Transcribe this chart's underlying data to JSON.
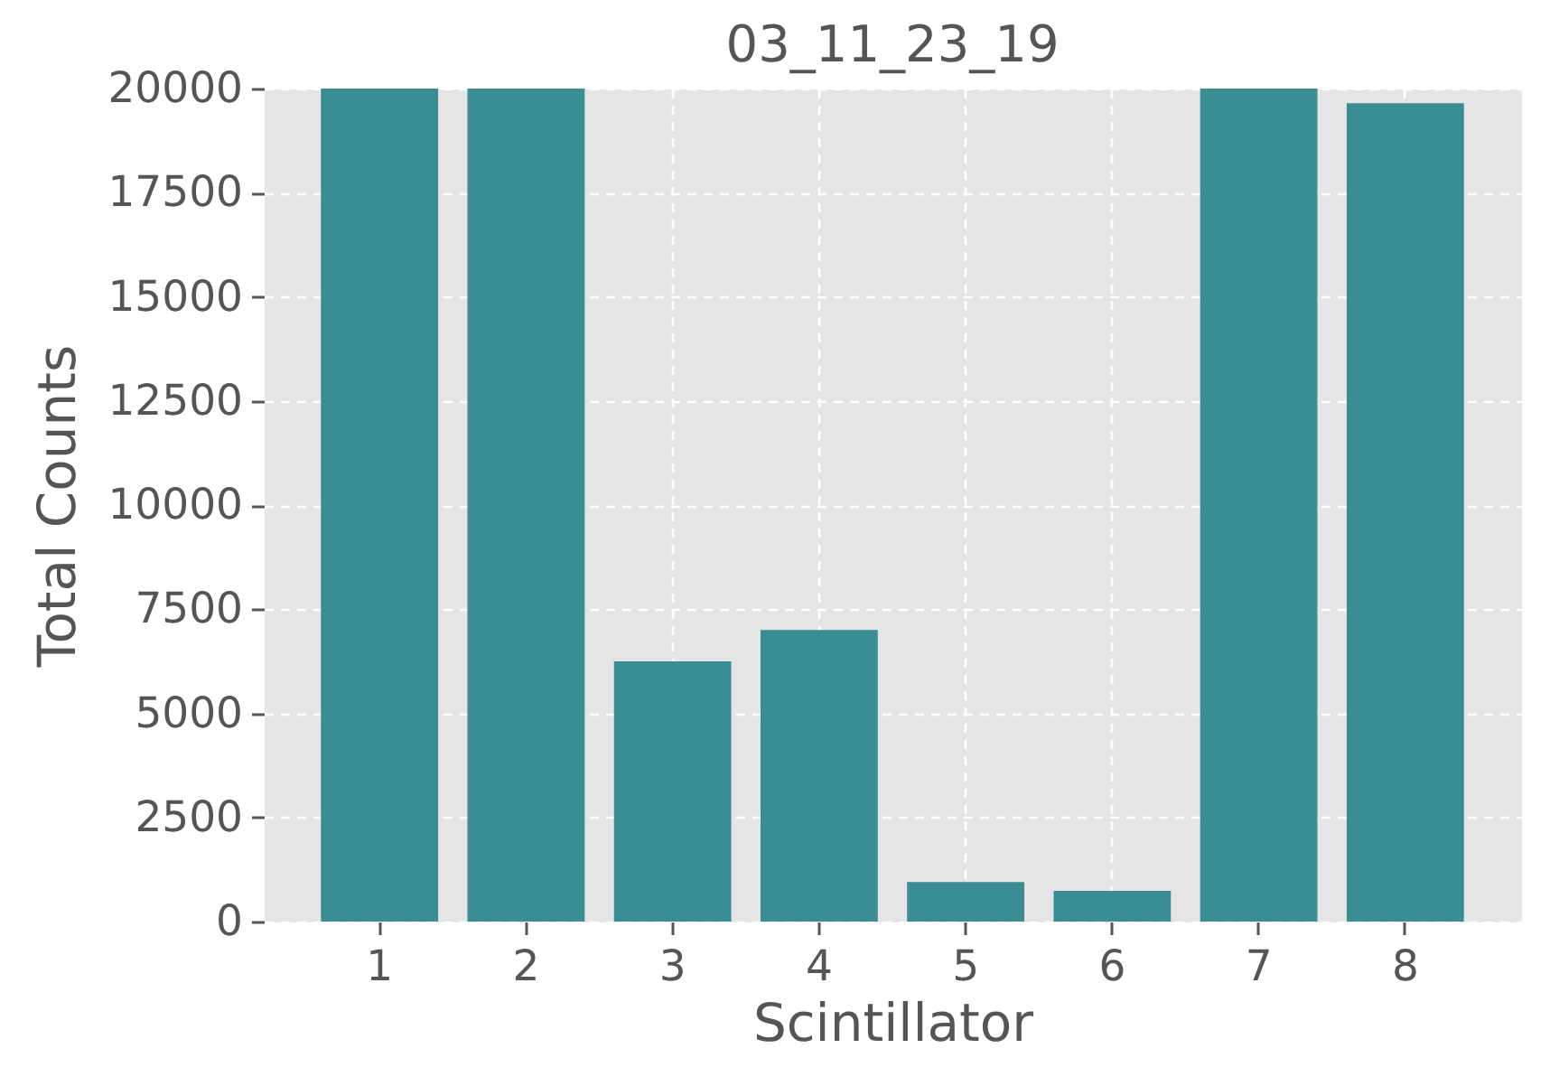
{
  "chart_data": {
    "type": "bar",
    "title": "03_11_23_19",
    "xlabel": "Scintillator",
    "ylabel": "Total Counts",
    "categories": [
      "1",
      "2",
      "3",
      "4",
      "5",
      "6",
      "7",
      "8"
    ],
    "values": [
      20000,
      20000,
      6250,
      7000,
      950,
      740,
      20000,
      19650
    ],
    "color": "#3a8d93",
    "ylim": [
      0,
      20000
    ],
    "yticks": [
      0,
      2500,
      5000,
      7500,
      10000,
      12500,
      15000,
      17500,
      20000
    ],
    "grid": true
  }
}
